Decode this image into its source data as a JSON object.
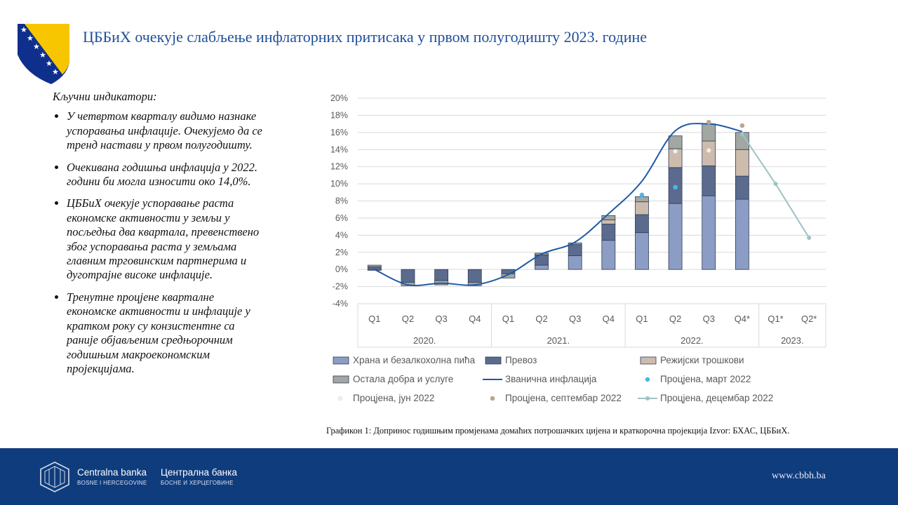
{
  "header": {
    "title": "ЦББиХ очекује слабљење инфлаторних притисака у првом полугодишту 2023. године"
  },
  "sidebar": {
    "heading": "Кључни индикатори:",
    "bullets": [
      "У четвртом кварталу видимо назнаке успоравања инфлације. Очекујемо да се тренд настави у првом полугодишту.",
      "Очекивана годишња инфлација у 2022. години би могла износити око 14,0%.",
      "ЦББиХ очекује успоравање раста економске активности у земљи у посљедња два квартала, превенствено због успоравања раста у земљама главним трговинским партнерима и дуготрајне високе инфлације.",
      "Тренутне процјене кварталне економске активности и инфлације у кратком року су конзистентне са раније објављеним средњорочним годишњим макроекономским пројекцијама."
    ]
  },
  "chart_data": {
    "type": "bar",
    "stacked": true,
    "categories": [
      "Q1",
      "Q2",
      "Q3",
      "Q4",
      "Q1",
      "Q2",
      "Q3",
      "Q4",
      "Q1",
      "Q2",
      "Q3",
      "Q4*",
      "Q1*",
      "Q2*"
    ],
    "groups": [
      {
        "label": "2020.",
        "start": 0,
        "end": 3
      },
      {
        "label": "2021.",
        "start": 4,
        "end": 7
      },
      {
        "label": "2022.",
        "start": 8,
        "end": 11
      },
      {
        "label": "2023.",
        "start": 12,
        "end": 13
      }
    ],
    "ylim": [
      -4,
      20
    ],
    "yticks": [
      "-4%",
      "-2%",
      "0%",
      "2%",
      "4%",
      "6%",
      "8%",
      "10%",
      "12%",
      "14%",
      "16%",
      "18%",
      "20%"
    ],
    "ytick_values": [
      -4,
      -2,
      0,
      2,
      4,
      6,
      8,
      10,
      12,
      14,
      16,
      18,
      20
    ],
    "grid": true,
    "legend_position": "bottom",
    "series": [
      {
        "name": "Храна и безалкохолна пића",
        "kind": "bar",
        "color": "#8c9dc5",
        "values": [
          -0.1,
          0.0,
          0.0,
          0.0,
          0.0,
          0.5,
          1.6,
          3.4,
          4.3,
          7.7,
          8.6,
          8.2,
          null,
          null
        ]
      },
      {
        "name": "Превоз",
        "kind": "bar",
        "color": "#5b6b8e",
        "values": [
          0.3,
          -1.5,
          -1.3,
          -1.5,
          -0.5,
          1.2,
          1.3,
          1.9,
          2.1,
          4.2,
          3.5,
          2.7,
          null,
          null
        ]
      },
      {
        "name": "Режијски трошкови",
        "kind": "bar",
        "color": "#cdbcad",
        "values": [
          0.0,
          0.0,
          0.0,
          0.0,
          0.0,
          0.0,
          0.0,
          0.5,
          1.5,
          2.2,
          2.9,
          3.1,
          null,
          null
        ]
      },
      {
        "name": "Остала добра и услуге",
        "kind": "bar",
        "color": "#a2a7a1",
        "values": [
          0.2,
          -0.4,
          -0.5,
          -0.4,
          -0.5,
          0.2,
          0.2,
          0.5,
          0.6,
          1.5,
          2.0,
          2.0,
          null,
          null
        ]
      },
      {
        "name": "Званична инфлација",
        "kind": "line",
        "color": "#1f5aa6",
        "values": [
          0.0,
          -1.8,
          -1.6,
          -1.8,
          -0.6,
          1.8,
          3.2,
          6.5,
          10.3,
          16.2,
          17.0,
          16.1,
          null,
          null
        ]
      },
      {
        "name": "Процјена, март 2022",
        "kind": "point",
        "color": "#4ab8e8",
        "values": [
          null,
          null,
          null,
          null,
          null,
          null,
          null,
          null,
          8.7,
          9.6,
          null,
          null,
          null,
          null
        ]
      },
      {
        "name": "Процјена, јун 2022",
        "kind": "point",
        "color": "#f2f0ec",
        "values": [
          null,
          null,
          null,
          null,
          null,
          null,
          null,
          null,
          null,
          13.8,
          13.9,
          null,
          null,
          null
        ]
      },
      {
        "name": "Процјена, септембар 2022",
        "kind": "point",
        "color": "#b9a690",
        "values": [
          null,
          null,
          null,
          null,
          null,
          null,
          null,
          null,
          null,
          null,
          17.2,
          16.8,
          null,
          null
        ]
      },
      {
        "name": "Процјена, децембар 2022",
        "kind": "line",
        "color": "#9fc2c4",
        "values": [
          null,
          null,
          null,
          null,
          null,
          null,
          null,
          null,
          null,
          null,
          null,
          15.8,
          10.0,
          3.7
        ]
      }
    ]
  },
  "caption": "Графикон 1: Допринос годишњим промјенама домаћих потрошачких цијена и краткорочна пројекција Izvor: БХАС, ЦББиХ.",
  "footer": {
    "bank_latin": "Centralna banka",
    "bank_latin_sub": "BOSNE I HERCEGOVINE",
    "bank_cyr": "Централна банка",
    "bank_cyr_sub": "БОСНЕ И ХЕРЦЕГОВИНЕ",
    "url": "www.cbbh.ba"
  }
}
